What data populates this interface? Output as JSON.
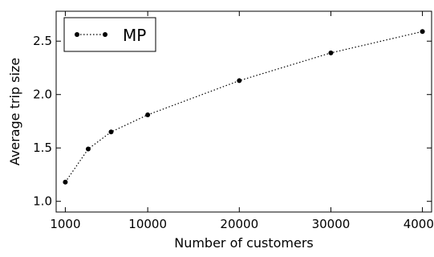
{
  "chart_data": {
    "type": "line",
    "x": [
      1000,
      3500,
      6000,
      10000,
      20000,
      30000,
      40000
    ],
    "series": [
      {
        "name": "MP",
        "values": [
          1.18,
          1.49,
          1.65,
          1.81,
          2.13,
          2.39,
          2.59
        ]
      }
    ],
    "xlabel": "Number of customers",
    "ylabel": "Average trip size",
    "xlim": [
      0,
      41000
    ],
    "ylim": [
      0.9,
      2.78
    ],
    "xticks": [
      1000,
      10000,
      20000,
      30000,
      40000
    ],
    "xtick_labels": [
      "1000",
      "10000",
      "20000",
      "30000",
      "40000"
    ],
    "yticks": [
      1.0,
      1.5,
      2.0,
      2.5
    ],
    "ytick_labels": [
      "1.0",
      "1.5",
      "2.0",
      "2.5"
    ],
    "grid": false,
    "legend_position": "top-left",
    "line_style": "dotted",
    "marker": "circle",
    "series_color": "#000000"
  }
}
